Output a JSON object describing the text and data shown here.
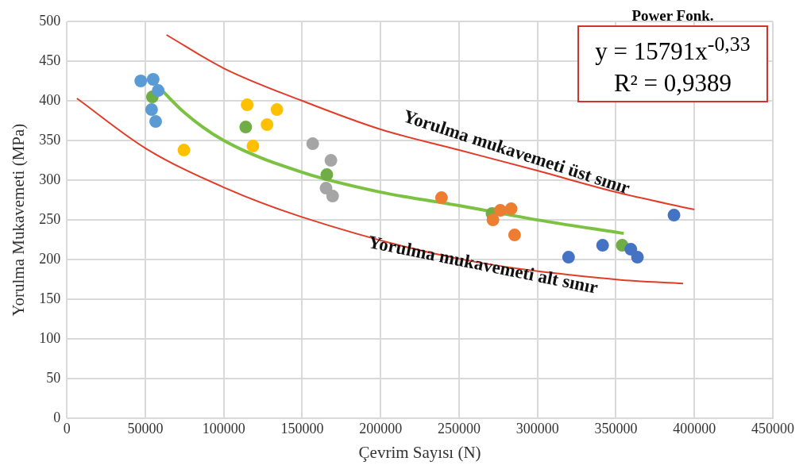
{
  "chart_data": {
    "type": "scatter",
    "xlabel": "Çevrim Sayısı (N)",
    "ylabel": "Yorulma Mukavemeti (MPa)",
    "xlim": [
      0,
      450000
    ],
    "xticks": [
      0,
      50000,
      100000,
      150000,
      200000,
      250000,
      300000,
      350000,
      400000,
      450000
    ],
    "ylim": [
      0,
      500
    ],
    "yticks": [
      0,
      50,
      100,
      150,
      200,
      250,
      300,
      350,
      400,
      450,
      500
    ],
    "grid": true,
    "legend": false,
    "marker": "circle",
    "series": [
      {
        "type": "line",
        "marker": "none",
        "color": "#e03c28",
        "x": [
          63500,
          100000,
          150000,
          200000,
          250000,
          300000,
          350000,
          400000
        ],
        "values": [
          483,
          441,
          400,
          364,
          338,
          312,
          285,
          263
        ]
      },
      {
        "type": "line",
        "marker": "none",
        "color": "#e03c28",
        "x": [
          6400,
          50300,
          100000,
          149300,
          249900,
          350500,
          392800
        ],
        "values": [
          403,
          340,
          291,
          254,
          201,
          175,
          170
        ]
      },
      {
        "type": "line",
        "marker": "none",
        "color": "#7cc242",
        "x": [
          55000,
          75000,
          100000,
          150000,
          200000,
          250000,
          300000,
          355000
        ],
        "values": [
          425,
          385,
          350,
          310,
          285,
          268,
          250,
          233
        ]
      },
      {
        "color": "#5b9bd5",
        "x": [
          47100,
          55000,
          58200,
          54000,
          56600
        ],
        "values": [
          425,
          427,
          413,
          389,
          374
        ]
      },
      {
        "color": "#ffc000",
        "x": [
          114900,
          133900,
          127600,
          118600,
          74600
        ],
        "values": [
          395,
          389,
          370,
          343,
          338
        ]
      },
      {
        "color": "#a5a5a5",
        "x": [
          156700,
          168300,
          165200,
          169400
        ],
        "values": [
          346,
          325,
          290,
          280
        ]
      },
      {
        "color": "#ed7d31",
        "x": [
          238800,
          276300,
          283200,
          271600,
          285400
        ],
        "values": [
          278,
          262,
          264,
          250,
          231
        ]
      },
      {
        "color": "#4472c4",
        "x": [
          319800,
          341500,
          359500,
          363700,
          387000
        ],
        "values": [
          203,
          218,
          213,
          203,
          256
        ]
      },
      {
        "color": "#70ad47",
        "x": [
          54500,
          114000,
          165700,
          271000,
          354000
        ],
        "values": [
          405,
          367,
          307,
          258,
          218
        ]
      }
    ],
    "annotations": [
      "Power Fonk.",
      "y = 15791x$^{-0,33}$",
      "R² = 0,9389",
      "Yorulma mukavemeti üst sınır",
      "Yorulma mukavemeti alt sınır"
    ]
  }
}
